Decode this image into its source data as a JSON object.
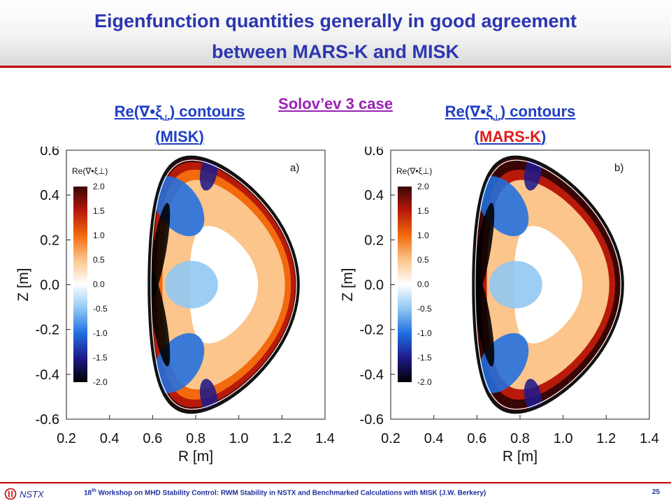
{
  "header": {
    "title_line1": "Eigenfunction quantities generally in good agreement",
    "title_line2": "between MARS-K and MISK"
  },
  "subtitle": "Solov’ev 3 case",
  "captions": {
    "left": {
      "prefix": "Re(∇•ξ",
      "sub": "⊥",
      "suffix": ") contours",
      "code": "MISK"
    },
    "right": {
      "prefix": "Re(∇•ξ",
      "sub": "⊥",
      "suffix": ") contours",
      "code": "MARS-K"
    }
  },
  "colors": {
    "title": "#2c36b0",
    "subtitle": "#9a22b4",
    "caption": "#1f3fc4",
    "caption_highlight": "#e01c1c",
    "rule": "#c00000",
    "colormap": [
      "#000000",
      "#1f1a8a",
      "#1f6fe0",
      "#8ec7f4",
      "#ffffff",
      "#fbc58c",
      "#f26a0c",
      "#b81a0a",
      "#3a0505"
    ]
  },
  "chart_data": [
    {
      "type": "heatmap",
      "panel_label": "a)",
      "xlabel": "R [m]",
      "ylabel": "Z [m]",
      "xlim": [
        0.2,
        1.4
      ],
      "ylim": [
        -0.6,
        0.6
      ],
      "xticks": [
        "0.2",
        "0.4",
        "0.6",
        "0.8",
        "1.0",
        "1.2",
        "1.4"
      ],
      "yticks": [
        "0.6",
        "0.4",
        "0.2",
        "0.0",
        "-0.2",
        "-0.4",
        "-0.6"
      ],
      "colorbar": {
        "title": "Re(∇•ξ⊥)",
        "ticks": [
          "2.0",
          "1.5",
          "1.0",
          "0.5",
          "0.0",
          "-0.5",
          "-1.0",
          "-1.5",
          "-2.0"
        ],
        "range": [
          -2.0,
          2.0
        ]
      }
    },
    {
      "type": "heatmap",
      "panel_label": "b)",
      "xlabel": "R [m]",
      "ylabel": "Z [m]",
      "xlim": [
        0.2,
        1.4
      ],
      "ylim": [
        -0.6,
        0.6
      ],
      "xticks": [
        "0.2",
        "0.4",
        "0.6",
        "0.8",
        "1.0",
        "1.2",
        "1.4"
      ],
      "yticks": [
        "0.6",
        "0.4",
        "0.2",
        "0.0",
        "-0.2",
        "-0.4",
        "-0.6"
      ],
      "colorbar": {
        "title": "Re(∇•ξ⊥)",
        "ticks": [
          "2.0",
          "1.5",
          "1.0",
          "0.5",
          "0.0",
          "-0.5",
          "-1.0",
          "-1.5",
          "-2.0"
        ],
        "range": [
          -2.0,
          2.0
        ]
      }
    }
  ],
  "footer": {
    "logo_text": "NSTX",
    "text_pre": "18",
    "text_sup": "th",
    "text_post": " Workshop on MHD Stability Control: RWM Stability in NSTX and Benchmarked Calculations with MISK (J.W. Berkery)",
    "page_number": "25"
  }
}
